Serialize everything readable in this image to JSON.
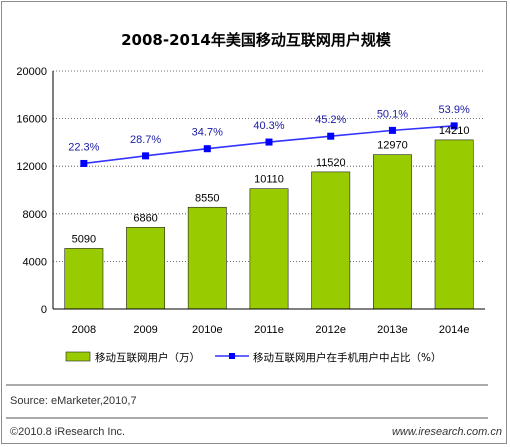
{
  "chart_data": {
    "type": "bar",
    "title": "2008-2014年美国移动互联网用户规模",
    "categories": [
      "2008",
      "2009",
      "2010e",
      "2011e",
      "2012e",
      "2013e",
      "2014e"
    ],
    "series": [
      {
        "name": "移动互联网用户（万）",
        "values": [
          5090,
          6860,
          8550,
          10110,
          11520,
          12970,
          14210
        ],
        "axis": "left",
        "style": "bar"
      },
      {
        "name": "移动互联网用户在手机用户中占比（%）",
        "values": [
          22.3,
          28.7,
          34.7,
          40.3,
          45.2,
          50.1,
          53.9
        ],
        "axis": "right-hidden",
        "style": "line"
      }
    ],
    "data_labels": [
      "5090",
      "6860",
      "8550",
      "10110",
      "11520",
      "12970",
      "14210"
    ],
    "pct_labels": [
      "22.3%",
      "28.7%",
      "34.7%",
      "40.3%",
      "45.2%",
      "50.1%",
      "53.9%"
    ],
    "ylim": [
      0,
      20000
    ],
    "yticks": [
      "0",
      "4000",
      "8000",
      "12000",
      "16000",
      "20000"
    ],
    "line_ylim": [
      -100,
      100
    ],
    "grid": true,
    "legend_position": "bottom",
    "colors": {
      "bar": "#99cc00",
      "line": "#3333ff",
      "marker": "#0000ff",
      "pct_text": "#1a1aa6"
    },
    "xlabel": "",
    "ylabel": ""
  },
  "footer": {
    "source": "Source: eMarketer,2010,7",
    "copyright": "©2010.8 iResearch Inc.",
    "url": "www.iresearch.com.cn"
  }
}
